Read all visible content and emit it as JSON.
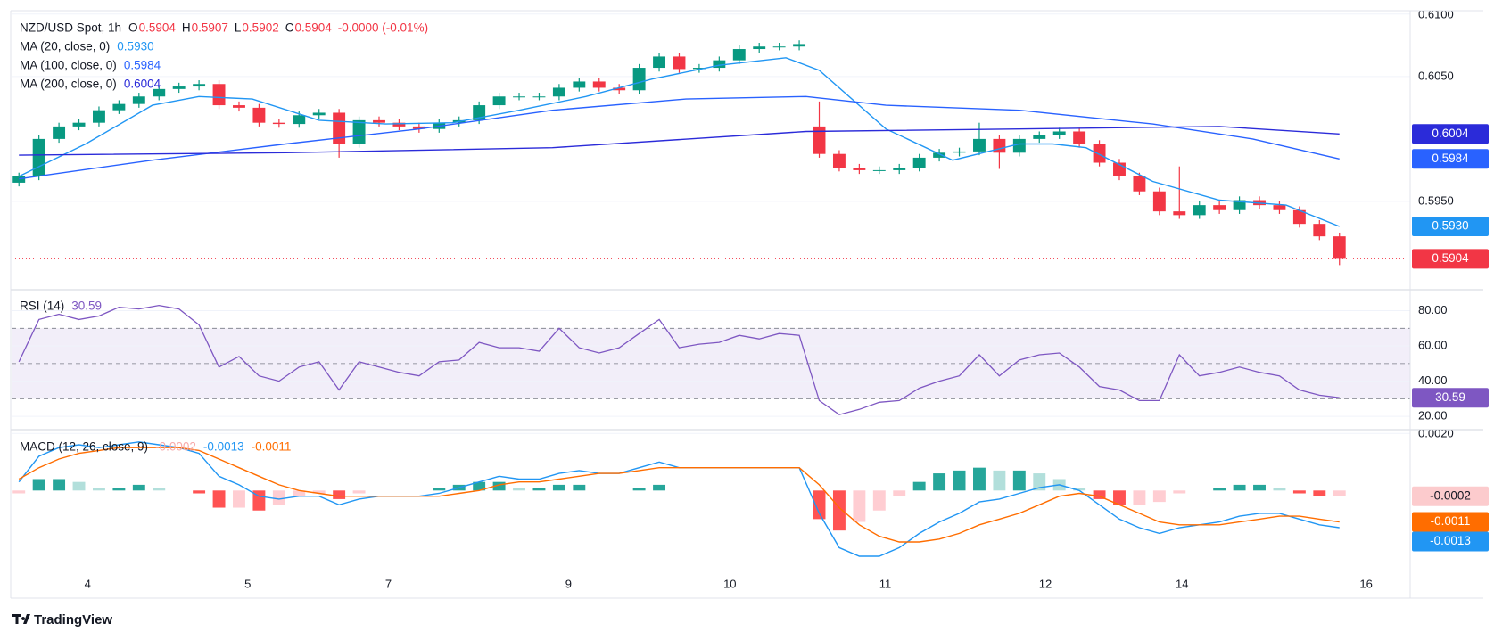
{
  "branding": "TradingView",
  "chart_data": [
    {
      "type": "candlestick",
      "title": "NZD/USD Spot, 1h",
      "ohlc": [
        {
          "key": "O",
          "value": 0.5904
        },
        {
          "key": "H",
          "value": 0.5907
        },
        {
          "key": "L",
          "value": 0.5902
        },
        {
          "key": "C",
          "value": 0.5904
        }
      ],
      "change": "-0.0000 (-0.01%)",
      "up_color": "#089981",
      "down_color": "#f23645",
      "x": [
        0,
        3,
        6,
        9,
        12,
        15,
        18,
        21,
        24,
        27,
        30,
        33,
        36,
        39,
        42,
        45,
        48,
        51,
        54,
        57,
        60,
        63,
        66,
        69,
        72,
        75,
        78,
        81,
        84,
        87,
        90,
        93,
        96,
        99,
        102,
        105,
        108,
        111,
        114,
        117,
        120,
        123,
        126,
        129,
        132,
        135,
        138,
        141,
        144,
        147,
        150,
        153,
        156,
        159,
        162,
        165,
        168,
        171,
        174,
        177,
        180,
        183,
        186,
        189,
        192,
        195,
        198
      ],
      "open": [
        0.5965,
        0.597,
        0.6,
        0.601,
        0.6013,
        0.6023,
        0.6028,
        0.6034,
        0.604,
        0.6042,
        0.6044,
        0.6027,
        0.6025,
        0.6013,
        0.6012,
        0.6019,
        0.6021,
        0.5996,
        0.6015,
        0.6013,
        0.601,
        0.6008,
        0.6013,
        0.6015,
        0.6027,
        0.6034,
        0.6034,
        0.6034,
        0.6041,
        0.6046,
        0.6041,
        0.6039,
        0.6057,
        0.6066,
        0.6056,
        0.6057,
        0.6063,
        0.6072,
        0.6074,
        0.6074,
        0.601,
        0.5988,
        0.5977,
        0.5975,
        0.5975,
        0.5977,
        0.5985,
        0.5989,
        0.599,
        0.6,
        0.5989,
        0.6,
        0.6003,
        0.6006,
        0.5996,
        0.5981,
        0.597,
        0.5958,
        0.5942,
        0.5939,
        0.5947,
        0.5943,
        0.5951,
        0.5947,
        0.5943,
        0.5932,
        0.5922
      ],
      "high": [
        0.5973,
        0.6003,
        0.6013,
        0.6016,
        0.6026,
        0.6031,
        0.6037,
        0.6043,
        0.6045,
        0.6047,
        0.6047,
        0.603,
        0.6028,
        0.6016,
        0.6022,
        0.6024,
        0.6024,
        0.6018,
        0.6018,
        0.6016,
        0.6013,
        0.6016,
        0.6018,
        0.603,
        0.6037,
        0.6037,
        0.6037,
        0.6044,
        0.6049,
        0.6049,
        0.6044,
        0.606,
        0.6069,
        0.6069,
        0.606,
        0.6066,
        0.6075,
        0.6077,
        0.6077,
        0.6079,
        0.603,
        0.5991,
        0.598,
        0.5978,
        0.598,
        0.5988,
        0.5992,
        0.5993,
        0.6013,
        0.6003,
        0.6003,
        0.6006,
        0.6009,
        0.6009,
        0.5999,
        0.5984,
        0.5973,
        0.5961,
        0.5978,
        0.595,
        0.595,
        0.5954,
        0.5954,
        0.595,
        0.5946,
        0.5935,
        0.5925
      ],
      "low": [
        0.5962,
        0.5967,
        0.5997,
        0.6007,
        0.601,
        0.602,
        0.6025,
        0.6031,
        0.6037,
        0.6039,
        0.6024,
        0.6022,
        0.601,
        0.6009,
        0.6009,
        0.6016,
        0.5985,
        0.5993,
        0.601,
        0.6007,
        0.6005,
        0.6005,
        0.601,
        0.6012,
        0.6024,
        0.6031,
        0.6031,
        0.6031,
        0.6038,
        0.6038,
        0.6036,
        0.6036,
        0.6054,
        0.6053,
        0.6053,
        0.6054,
        0.606,
        0.6069,
        0.6071,
        0.6071,
        0.5985,
        0.5974,
        0.5972,
        0.5972,
        0.5972,
        0.5974,
        0.5982,
        0.5986,
        0.5987,
        0.5976,
        0.5986,
        0.5997,
        0.6,
        0.5993,
        0.5978,
        0.5967,
        0.5955,
        0.5939,
        0.5936,
        0.5936,
        0.594,
        0.594,
        0.5944,
        0.594,
        0.5929,
        0.5919,
        0.5899
      ],
      "close": [
        0.597,
        0.6,
        0.601,
        0.6013,
        0.6023,
        0.6028,
        0.6034,
        0.604,
        0.6042,
        0.6044,
        0.6027,
        0.6025,
        0.6013,
        0.6012,
        0.6019,
        0.6021,
        0.5996,
        0.6015,
        0.6013,
        0.601,
        0.6008,
        0.6013,
        0.6015,
        0.6027,
        0.6034,
        0.6034,
        0.6034,
        0.6041,
        0.6046,
        0.6041,
        0.6039,
        0.6057,
        0.6066,
        0.6056,
        0.6057,
        0.6063,
        0.6072,
        0.6074,
        0.6074,
        0.6076,
        0.5988,
        0.5977,
        0.5975,
        0.5975,
        0.5977,
        0.5985,
        0.5989,
        0.599,
        0.6,
        0.5989,
        0.6,
        0.6003,
        0.6006,
        0.5996,
        0.5981,
        0.597,
        0.5958,
        0.5942,
        0.5939,
        0.5947,
        0.5943,
        0.5951,
        0.5947,
        0.5943,
        0.5932,
        0.5922,
        0.5904
      ],
      "series": [
        {
          "name": "MA (20, close, 0)",
          "color": "#2196f3",
          "last_label": "0.5930",
          "x": [
            0,
            10,
            20,
            27,
            35,
            45,
            55,
            65,
            75,
            85,
            95,
            105,
            115,
            120,
            130,
            140,
            150,
            155,
            160,
            170,
            180,
            190,
            198
          ],
          "values": [
            0.597,
            0.5996,
            0.6027,
            0.6034,
            0.6032,
            0.6015,
            0.6012,
            0.6013,
            0.6023,
            0.6034,
            0.6048,
            0.6059,
            0.6065,
            0.6055,
            0.6008,
            0.5983,
            0.5996,
            0.5996,
            0.5993,
            0.5966,
            0.5951,
            0.5947,
            0.593
          ]
        },
        {
          "name": "MA (100, close, 0)",
          "color": "#2962ff",
          "last_label": "0.5984",
          "x": [
            0,
            20,
            40,
            60,
            80,
            100,
            118,
            130,
            150,
            170,
            185,
            198
          ],
          "values": [
            0.5968,
            0.5983,
            0.5996,
            0.6008,
            0.6023,
            0.6032,
            0.6034,
            0.6027,
            0.6023,
            0.6012,
            0.6,
            0.5984
          ]
        },
        {
          "name": "MA (200, close, 0)",
          "color": "#2b2bd9",
          "last_label": "0.6004",
          "x": [
            0,
            40,
            80,
            118,
            150,
            180,
            198
          ],
          "values": [
            0.5987,
            0.5989,
            0.5993,
            0.6006,
            0.6008,
            0.601,
            0.6004
          ]
        }
      ],
      "xlim": [
        -1.1,
        208.6
      ],
      "ylim": [
        0.588,
        0.6102
      ],
      "yticks": [
        {
          "value": 0.595,
          "label": "0.5950"
        },
        {
          "value": 0.605,
          "label": "0.6050"
        },
        {
          "value": 0.61,
          "label": "0.6100"
        }
      ],
      "xticks": [
        {
          "value": 10.3,
          "label": "4"
        },
        {
          "value": 34.3,
          "label": "5"
        },
        {
          "value": 55.4,
          "label": "7"
        },
        {
          "value": 82.4,
          "label": "9"
        },
        {
          "value": 106.6,
          "label": "10"
        },
        {
          "value": 129.9,
          "label": "11"
        },
        {
          "value": 153.9,
          "label": "12"
        },
        {
          "value": 174.4,
          "label": "14"
        },
        {
          "value": 202,
          "label": "16"
        }
      ]
    },
    {
      "type": "rsi",
      "name": "RSI (14)",
      "color": "#7e57c2",
      "values": [
        51,
        75,
        78,
        75,
        77,
        82,
        81,
        83,
        81,
        72,
        48,
        54,
        43,
        40,
        48,
        51,
        35,
        51,
        48,
        45,
        43,
        51,
        52,
        62,
        59,
        59,
        57,
        70,
        59,
        56,
        59,
        67,
        75,
        59,
        61,
        62,
        66,
        64,
        67,
        66,
        29,
        21,
        24,
        28,
        29,
        36,
        40,
        43,
        55,
        43,
        52,
        55,
        56,
        48,
        37,
        35,
        29,
        29,
        55,
        43,
        45,
        48,
        45,
        43,
        35,
        32,
        30.59
      ],
      "bands": [
        30,
        50,
        70
      ],
      "ylim": [
        13,
        91.4
      ],
      "yticks": [
        {
          "value": 20,
          "label": "20.00"
        },
        {
          "value": 40,
          "label": "40.00"
        },
        {
          "value": 60,
          "label": "60.00"
        },
        {
          "value": 80,
          "label": "80.00"
        }
      ]
    },
    {
      "type": "macd",
      "name": "MACD (12, 26, close, 9)",
      "histogram": {
        "colors": [
          "#26a69a",
          "#b2dfdb",
          "#ff5252",
          "#ffcdd2"
        ],
        "values": [
          -0.0001,
          0.0004,
          0.0004,
          0.0003,
          0.0001,
          0.0001,
          0.0002,
          0.0001,
          0,
          -0.0001,
          -0.0006,
          -0.0006,
          -0.0007,
          -0.0005,
          -0.0002,
          -0.0001,
          -0.0003,
          -0.0001,
          0,
          0,
          0,
          0.0001,
          0.0002,
          0.0003,
          0.0003,
          0.0001,
          0.0001,
          0.0002,
          0.0002,
          0,
          0,
          0.0001,
          0.0002,
          0,
          0,
          0,
          0,
          0,
          0,
          0,
          -0.001,
          -0.0014,
          -0.0011,
          -0.0007,
          -0.0002,
          0.0003,
          0.0006,
          0.0007,
          0.0008,
          0.0007,
          0.0007,
          0.0006,
          0.0004,
          0.0001,
          -0.0003,
          -0.0005,
          -0.0005,
          -0.0004,
          -0.0001,
          0,
          0.0001,
          0.0002,
          0.0002,
          0.0001,
          -0.0001,
          -0.0002,
          -0.0002
        ]
      },
      "series": [
        {
          "color": "#2196f3",
          "values": [
            0.0003,
            0.0012,
            0.0015,
            0.0016,
            0.0015,
            0.0016,
            0.0017,
            0.0016,
            0.0015,
            0.0013,
            0.0005,
            0.0002,
            -0.0002,
            -0.0003,
            -0.0002,
            -0.0002,
            -0.0005,
            -0.0003,
            -0.0002,
            -0.0002,
            -0.0002,
            -0.0001,
            0.0001,
            0.0003,
            0.0005,
            0.0004,
            0.0004,
            0.0006,
            0.0007,
            0.0006,
            0.0006,
            0.0008,
            0.001,
            0.0008,
            0.0008,
            0.0008,
            0.0008,
            0.0008,
            0.0008,
            0.0008,
            -0.0008,
            -0.002,
            -0.0023,
            -0.0023,
            -0.002,
            -0.0015,
            -0.0011,
            -0.0008,
            -0.0004,
            -0.0003,
            -0.0001,
            0.0001,
            0.0002,
            0,
            -0.0005,
            -0.001,
            -0.0013,
            -0.0015,
            -0.0013,
            -0.0012,
            -0.0011,
            -0.0009,
            -0.0008,
            -0.0008,
            -0.001,
            -0.0012,
            -0.0013
          ]
        },
        {
          "color": "#ff6d00",
          "values": [
            0.0004,
            0.0008,
            0.0011,
            0.0013,
            0.0014,
            0.0015,
            0.0015,
            0.0015,
            0.0015,
            0.0014,
            0.0011,
            0.0008,
            0.0005,
            0.0002,
            0,
            -0.0001,
            -0.0002,
            -0.0002,
            -0.0002,
            -0.0002,
            -0.0002,
            -0.0002,
            -0.0001,
            0,
            0.0002,
            0.0003,
            0.0003,
            0.0004,
            0.0005,
            0.0006,
            0.0006,
            0.0007,
            0.0008,
            0.0008,
            0.0008,
            0.0008,
            0.0008,
            0.0008,
            0.0008,
            0.0008,
            0.0002,
            -0.0006,
            -0.0012,
            -0.0016,
            -0.0018,
            -0.0018,
            -0.0017,
            -0.0015,
            -0.0012,
            -0.001,
            -0.0008,
            -0.0005,
            -0.0002,
            -0.0001,
            -0.0002,
            -0.0005,
            -0.0008,
            -0.0011,
            -0.0012,
            -0.0012,
            -0.0012,
            -0.0011,
            -0.001,
            -0.0009,
            -0.0009,
            -0.001,
            -0.0011
          ]
        }
      ],
      "ylim": [
        -0.00283,
        0.0021
      ],
      "yticks": [
        {
          "value": 0.002,
          "label": "0.0020"
        }
      ]
    }
  ]
}
